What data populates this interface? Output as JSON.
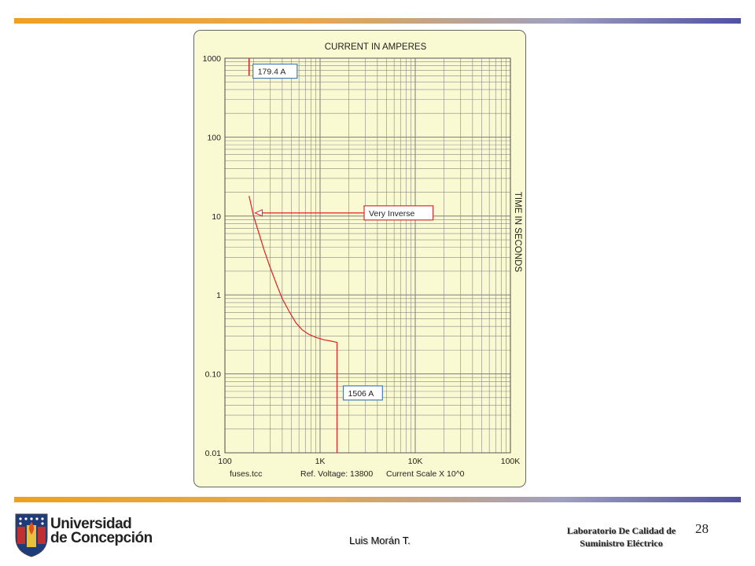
{
  "footer": {
    "author": "Luis Morán T.",
    "lab_line1": "Laboratorio De Calidad de",
    "lab_line2": "Suministro Eléctrico",
    "page_number": "28",
    "university_line1": "Universidad",
    "university_line2": "de Concepción"
  },
  "colors": {
    "band_start": "#f0a020",
    "band_end": "#5050a0",
    "chart_bg": "#fafad2",
    "grid": "#888888",
    "curve": "#e02020",
    "label_border_blue": "#4a7ab8",
    "label_border_red": "#d03030"
  },
  "chart_data": {
    "type": "line",
    "title": "CURRENT IN AMPERES",
    "ylabel": "TIME IN SECONDS",
    "x_scale": "log",
    "y_scale": "log",
    "xlim": [
      100,
      100000
    ],
    "ylim": [
      0.01,
      1000
    ],
    "x_ticks": [
      {
        "value": 100,
        "label": "100"
      },
      {
        "value": 1000,
        "label": "1K"
      },
      {
        "value": 10000,
        "label": "10K"
      },
      {
        "value": 100000,
        "label": "100K"
      }
    ],
    "y_ticks": [
      {
        "value": 1000,
        "label": "1000"
      },
      {
        "value": 100,
        "label": "100"
      },
      {
        "value": 10,
        "label": "10"
      },
      {
        "value": 1,
        "label": "1"
      },
      {
        "value": 0.1,
        "label": "0.10"
      },
      {
        "value": 0.01,
        "label": "0.01"
      }
    ],
    "grid": true,
    "footer_labels": [
      "fuses.tcc",
      "Ref. Voltage: 13800",
      "Current Scale X 10^0"
    ],
    "series": [
      {
        "points": [
          [
            179.4,
            18
          ],
          [
            200,
            10
          ],
          [
            230,
            5.8
          ],
          [
            260,
            3.6
          ],
          [
            300,
            2.2
          ],
          [
            350,
            1.35
          ],
          [
            400,
            0.9
          ],
          [
            480,
            0.6
          ],
          [
            560,
            0.44
          ],
          [
            650,
            0.36
          ],
          [
            750,
            0.32
          ],
          [
            900,
            0.29
          ],
          [
            1100,
            0.27
          ],
          [
            1300,
            0.26
          ],
          [
            1506,
            0.25
          ],
          [
            1506,
            0.01
          ]
        ]
      }
    ],
    "pickup_marker": {
      "x": 179.4,
      "y_range": [
        600,
        1000
      ]
    },
    "annotations": [
      {
        "text": "179.4 A",
        "x": 179.4,
        "y": 750,
        "border": "blue"
      },
      {
        "text": "Very Inverse",
        "x": 200,
        "y": 12,
        "border": "red",
        "arrow": true
      },
      {
        "text": "1506 A",
        "x": 1506,
        "y": 0.06,
        "border": "blue"
      }
    ]
  }
}
